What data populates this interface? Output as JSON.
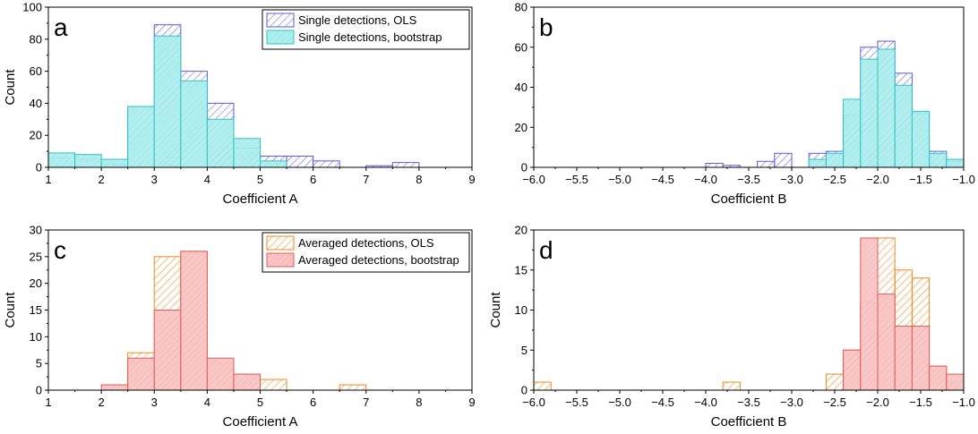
{
  "colors": {
    "blue_edge": "#5a5ae0",
    "cyan_fill": "#aeeeee",
    "cyan_edge": "#2ec4c4",
    "orange_edge": "#ee8a1a",
    "red_fill": "#f8c4c4",
    "red_edge": "#e85858"
  },
  "chart_data": [
    {
      "panel_label": "a",
      "type": "bar",
      "xlabel": "Coefficient A",
      "ylabel": "Count",
      "xlim": [
        1,
        9
      ],
      "ylim": [
        0,
        100
      ],
      "xticks": [
        "1",
        "2",
        "3",
        "4",
        "5",
        "6",
        "7",
        "8",
        "9"
      ],
      "yticks": [
        "0",
        "20",
        "40",
        "60",
        "80",
        "100"
      ],
      "bin_width": 0.5,
      "legend": {
        "position": "top-right",
        "entries": [
          "Single detections, OLS",
          "Single detections, bootstrap"
        ]
      },
      "series": [
        {
          "name": "Single detections, OLS",
          "style": "hatch",
          "color_key": "blue",
          "bins": [
            1.0,
            1.5,
            2.0,
            2.5,
            3.0,
            3.5,
            4.0,
            4.5,
            5.0,
            5.5,
            6.0,
            7.0,
            7.5
          ],
          "values": [
            6,
            5,
            2,
            38,
            89,
            60,
            40,
            12,
            7,
            7,
            4,
            1,
            3
          ]
        },
        {
          "name": "Single detections, bootstrap",
          "style": "fill",
          "color_key": "cyan",
          "bins": [
            1.0,
            1.5,
            2.0,
            2.5,
            3.0,
            3.5,
            4.0,
            4.5,
            5.0
          ],
          "values": [
            9,
            8,
            5,
            38,
            82,
            54,
            30,
            18,
            4
          ]
        }
      ]
    },
    {
      "panel_label": "b",
      "type": "bar",
      "xlabel": "Coefficient B",
      "ylabel": "",
      "xlim": [
        -6.0,
        -1.0
      ],
      "ylim": [
        0,
        80
      ],
      "xticks": [
        "−6.0",
        "−5.5",
        "−5.0",
        "−4.5",
        "−4.0",
        "−3.5",
        "−3.0",
        "−2.5",
        "−2.0",
        "−1.5",
        "−1.0"
      ],
      "yticks": [
        "0",
        "20",
        "40",
        "60",
        "80"
      ],
      "bin_width": 0.2,
      "legend": null,
      "series": [
        {
          "name": "OLS",
          "style": "hatch",
          "color_key": "blue",
          "bins": [
            -4.0,
            -3.8,
            -3.4,
            -3.2,
            -2.8,
            -2.6,
            -2.4,
            -2.2,
            -2.0,
            -1.8,
            -1.6,
            -1.4,
            -1.2
          ],
          "values": [
            2,
            1,
            3,
            7,
            7,
            8,
            26,
            60,
            63,
            47,
            27,
            8,
            3
          ]
        },
        {
          "name": "bootstrap",
          "style": "fill",
          "color_key": "cyan",
          "bins": [
            -2.8,
            -2.6,
            -2.4,
            -2.2,
            -2.0,
            -1.8,
            -1.6,
            -1.4,
            -1.2
          ],
          "values": [
            4,
            7,
            34,
            54,
            59,
            41,
            28,
            7,
            4
          ]
        }
      ]
    },
    {
      "panel_label": "c",
      "type": "bar",
      "xlabel": "Coefficient A",
      "ylabel": "Count",
      "xlim": [
        1,
        9
      ],
      "ylim": [
        0,
        30
      ],
      "xticks": [
        "1",
        "2",
        "3",
        "4",
        "5",
        "6",
        "7",
        "8",
        "9"
      ],
      "yticks": [
        "0",
        "5",
        "10",
        "15",
        "20",
        "25",
        "30"
      ],
      "bin_width": 0.5,
      "legend": {
        "position": "top-right",
        "entries": [
          "Averaged detections, OLS",
          "Averaged detections, bootstrap"
        ]
      },
      "series": [
        {
          "name": "Averaged detections, OLS",
          "style": "hatch",
          "color_key": "orange",
          "bins": [
            2.5,
            3.0,
            3.5,
            4.0,
            4.5,
            5.0,
            6.5
          ],
          "values": [
            7,
            25,
            26,
            5,
            3,
            2,
            1
          ]
        },
        {
          "name": "Averaged detections, bootstrap",
          "style": "fill",
          "color_key": "red",
          "bins": [
            2.0,
            2.5,
            3.0,
            3.5,
            4.0,
            4.5
          ],
          "values": [
            1,
            6,
            15,
            26,
            6,
            3
          ]
        }
      ]
    },
    {
      "panel_label": "d",
      "type": "bar",
      "xlabel": "Coefficient B",
      "ylabel": "Count",
      "xlim": [
        -6.0,
        -1.0
      ],
      "ylim": [
        0,
        20
      ],
      "xticks": [
        "−6.0",
        "−5.5",
        "−5.0",
        "−4.5",
        "−4.0",
        "−3.5",
        "−3.0",
        "−2.5",
        "−2.0",
        "−1.5",
        "−1.0"
      ],
      "yticks": [
        "0",
        "5",
        "10",
        "15",
        "20"
      ],
      "bin_width": 0.2,
      "legend": null,
      "series": [
        {
          "name": "OLS",
          "style": "hatch",
          "color_key": "orange",
          "bins": [
            -6.0,
            -3.8,
            -2.6,
            -2.4,
            -2.2,
            -2.0,
            -1.8,
            -1.6,
            -1.4,
            -1.2
          ],
          "values": [
            1,
            1,
            2,
            5,
            11,
            19,
            15,
            14,
            3,
            1
          ]
        },
        {
          "name": "bootstrap",
          "style": "fill",
          "color_key": "red",
          "bins": [
            -2.4,
            -2.2,
            -2.0,
            -1.8,
            -1.6,
            -1.4,
            -1.2
          ],
          "values": [
            5,
            19,
            12,
            8,
            8,
            3,
            2
          ]
        }
      ]
    }
  ]
}
